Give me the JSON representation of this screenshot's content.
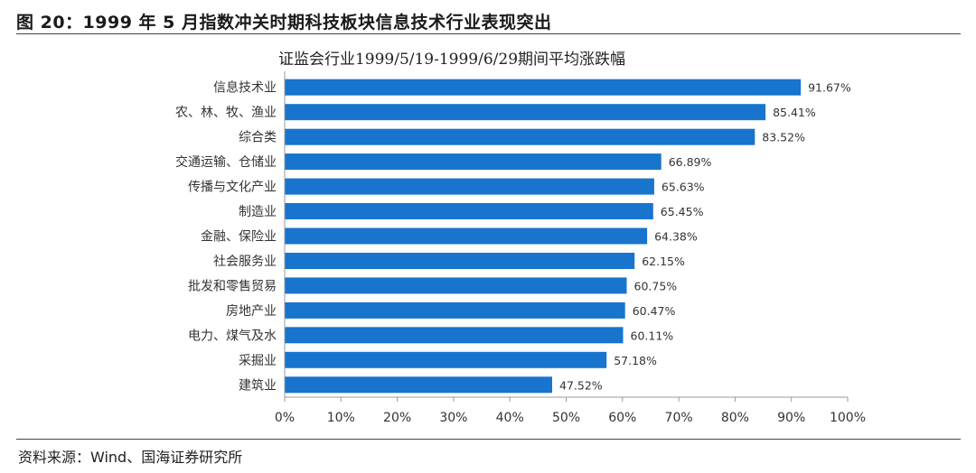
{
  "figure": {
    "title": "图 20：1999 年 5 月指数冲关时期科技板块信息技术行业表现突出",
    "source": "资料来源：Wind、国海证券研究所"
  },
  "chart_data": {
    "type": "bar",
    "orientation": "horizontal",
    "title": "证监会行业1999/5/19-1999/6/29期间平均涨跌幅",
    "categories": [
      "信息技术业",
      "农、林、牧、渔业",
      "综合类",
      "交通运输、仓储业",
      "传播与文化产业",
      "制造业",
      "金融、保险业",
      "社会服务业",
      "批发和零售贸易",
      "房地产业",
      "电力、煤气及水",
      "采掘业",
      "建筑业"
    ],
    "values": [
      91.67,
      85.41,
      83.52,
      66.89,
      65.63,
      65.45,
      64.38,
      62.15,
      60.75,
      60.47,
      60.11,
      57.18,
      47.52
    ],
    "value_labels": [
      "91.67%",
      "85.41%",
      "83.52%",
      "66.89%",
      "65.63%",
      "65.45%",
      "64.38%",
      "62.15%",
      "60.75%",
      "60.47%",
      "60.11%",
      "57.18%",
      "47.52%"
    ],
    "xlim": [
      0,
      100
    ],
    "xticks": [
      0,
      10,
      20,
      30,
      40,
      50,
      60,
      70,
      80,
      90,
      100
    ],
    "xtick_labels": [
      "0%",
      "10%",
      "20%",
      "30%",
      "40%",
      "50%",
      "60%",
      "70%",
      "80%",
      "90%",
      "100%"
    ],
    "bar_color": "#1874cd",
    "grid": false,
    "legend": "none"
  }
}
